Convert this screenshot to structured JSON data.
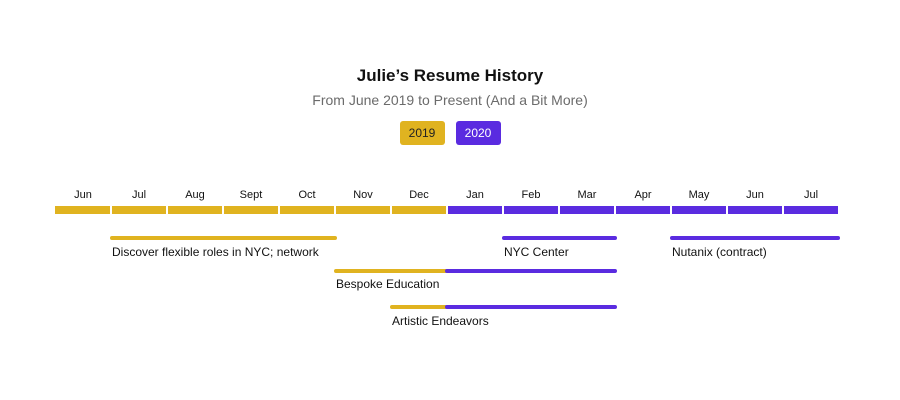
{
  "colors": {
    "year_2019": "#e0b320",
    "year_2020": "#5a2be0"
  },
  "chart_data": {
    "type": "timeline",
    "title": "Julie’s Resume History",
    "subtitle": "From June 2019 to Present (And a Bit More)",
    "legend": [
      {
        "label": "2019",
        "color": "#e0b320"
      },
      {
        "label": "2020",
        "color": "#5a2be0"
      }
    ],
    "months": [
      {
        "label": "Jun",
        "year": "2019"
      },
      {
        "label": "Jul",
        "year": "2019"
      },
      {
        "label": "Aug",
        "year": "2019"
      },
      {
        "label": "Sept",
        "year": "2019"
      },
      {
        "label": "Oct",
        "year": "2019"
      },
      {
        "label": "Nov",
        "year": "2019"
      },
      {
        "label": "Dec",
        "year": "2019"
      },
      {
        "label": "Jan",
        "year": "2020"
      },
      {
        "label": "Feb",
        "year": "2020"
      },
      {
        "label": "Mar",
        "year": "2020"
      },
      {
        "label": "Apr",
        "year": "2020"
      },
      {
        "label": "May",
        "year": "2020"
      },
      {
        "label": "Jun",
        "year": "2020"
      },
      {
        "label": "Jul",
        "year": "2020"
      }
    ],
    "events": [
      {
        "label": "Discover flexible roles in NYC; network",
        "start": "2019-07",
        "end": "2019-10",
        "row": 1
      },
      {
        "label": "NYC Center",
        "start": "2020-02",
        "end": "2020-03",
        "row": 1
      },
      {
        "label": "Nutanix (contract)",
        "start": "2020-05",
        "end": "2020-07",
        "row": 1
      },
      {
        "label": "Bespoke Education",
        "start": "2019-11",
        "end": "2020-03",
        "row": 2
      },
      {
        "label": "Artistic Endeavors",
        "start": "2019-12",
        "end": "2020-03",
        "row": 3
      }
    ]
  }
}
